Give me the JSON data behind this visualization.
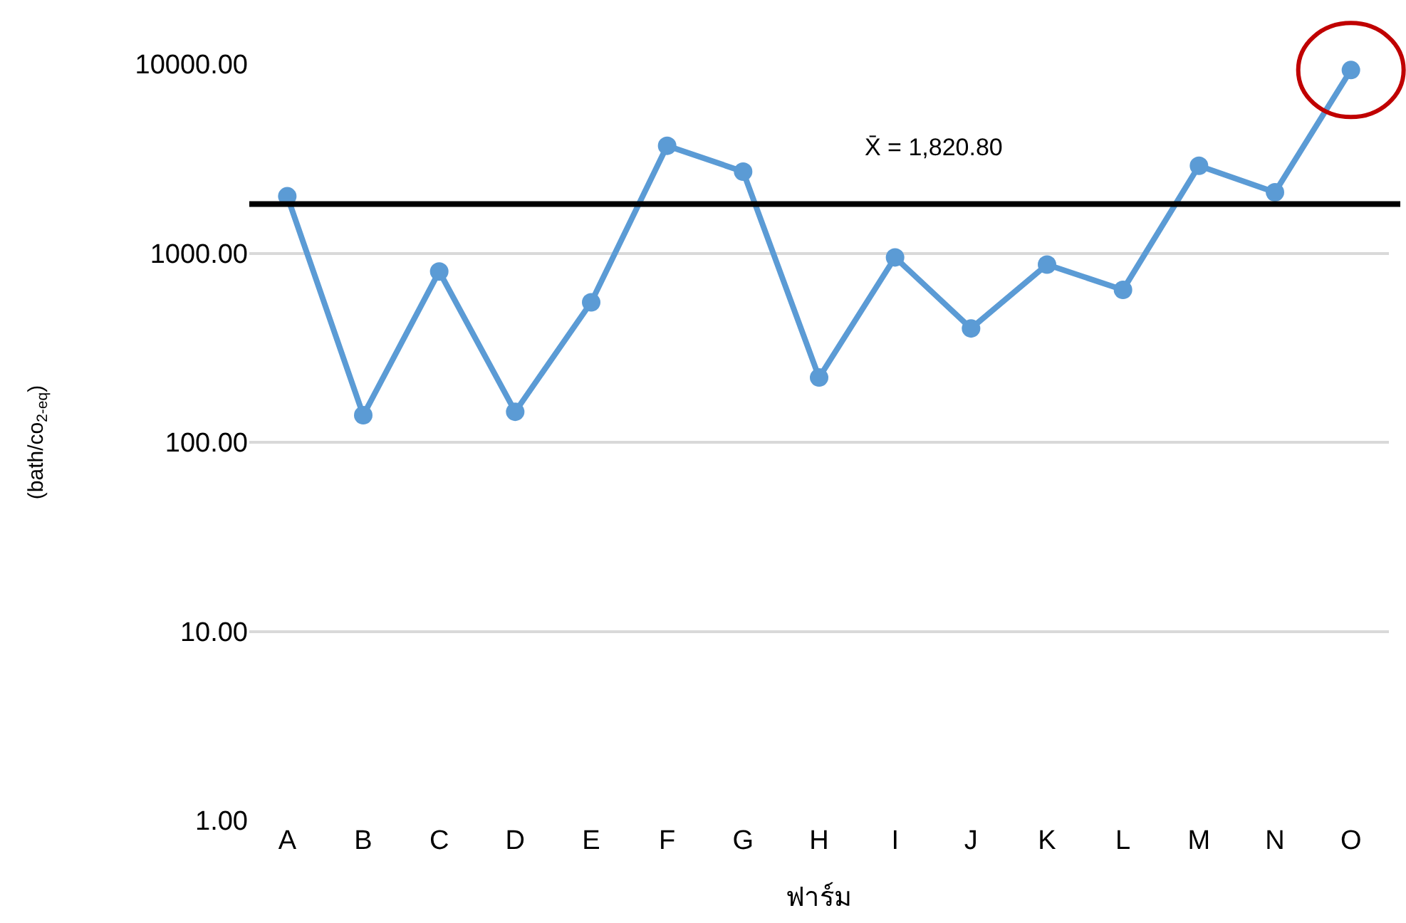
{
  "chart_data": {
    "type": "line",
    "xlabel": "ฟาร์ม",
    "ylabel": "(bath/co$_{2-eq}$)",
    "categories": [
      "A",
      "B",
      "C",
      "D",
      "E",
      "F",
      "G",
      "H",
      "I",
      "J",
      "K",
      "L",
      "M",
      "N",
      "O"
    ],
    "series": [
      {
        "color": "#5b9bd5",
        "values": [
          2000,
          139,
          800,
          145,
          550,
          3700,
          2700,
          220,
          950,
          400,
          870,
          640,
          2900,
          2100,
          9300
        ]
      }
    ],
    "log": "y",
    "ylim": [
      1,
      10000
    ],
    "yticks": [
      {
        "value": 1,
        "label": "1.00"
      },
      {
        "value": 10,
        "label": "10.00"
      },
      {
        "value": 100,
        "label": "100.00"
      },
      {
        "value": 1000,
        "label": "1000.00"
      },
      {
        "value": 10000,
        "label": "10000.00"
      }
    ],
    "grid": "y",
    "marker": "circle",
    "line_style": "solid",
    "ref_lines": [
      {
        "axis": "y",
        "value": 1820.8,
        "label": "X̄ = 1,820.80",
        "color": "#000000"
      }
    ]
  }
}
